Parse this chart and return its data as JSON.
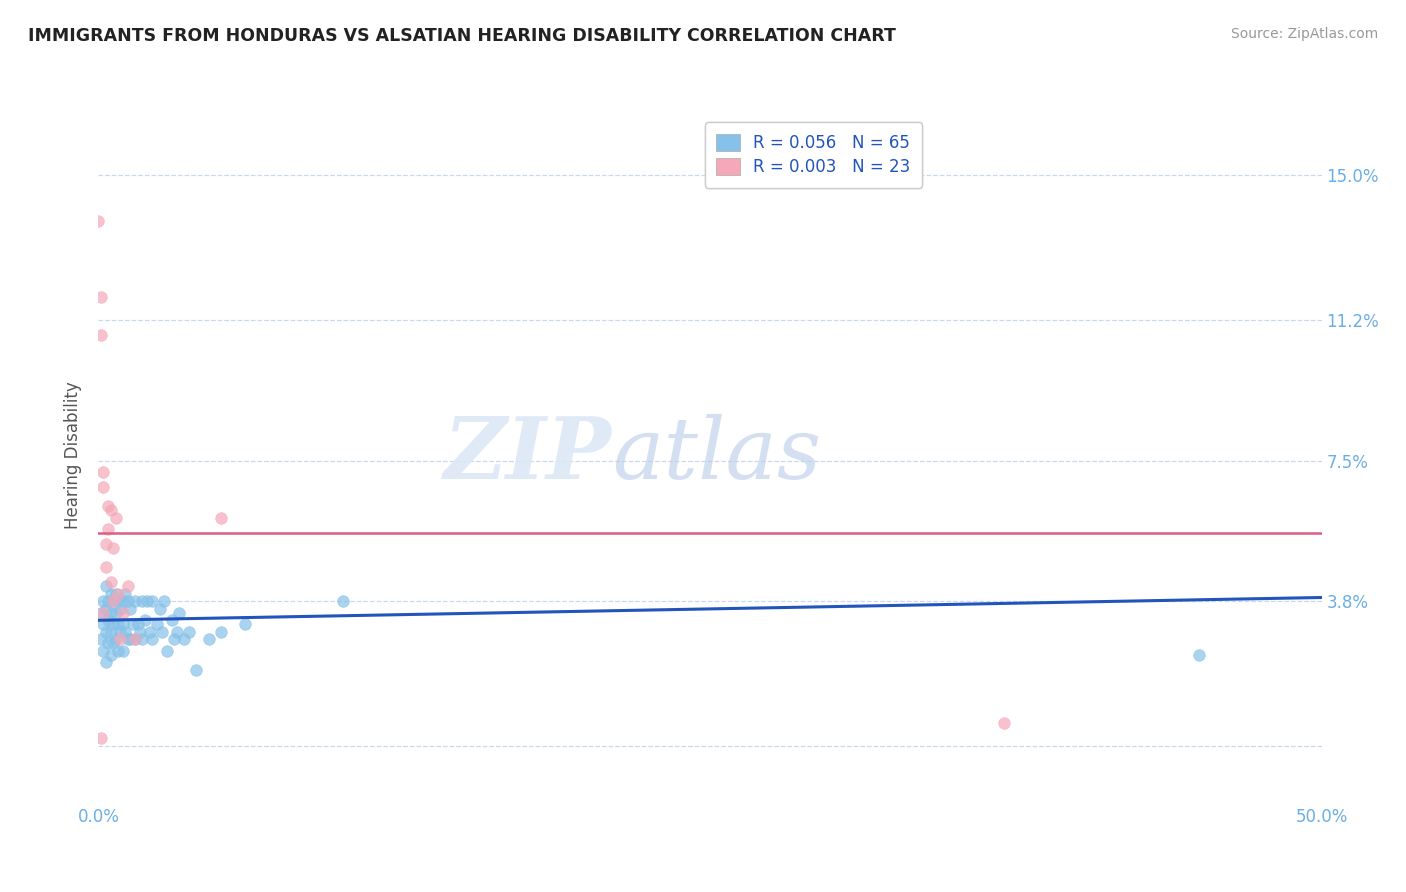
{
  "title": "IMMIGRANTS FROM HONDURAS VS ALSATIAN HEARING DISABILITY CORRELATION CHART",
  "source": "Source: ZipAtlas.com",
  "ylabel": "Hearing Disability",
  "yticks": [
    0.0,
    0.038,
    0.075,
    0.112,
    0.15
  ],
  "ytick_labels": [
    "",
    "3.8%",
    "7.5%",
    "11.2%",
    "15.0%"
  ],
  "xlim": [
    0.0,
    0.5
  ],
  "ylim": [
    -0.015,
    0.168
  ],
  "legend_r1": "R = 0.056",
  "legend_n1": "N = 65",
  "legend_r2": "R = 0.003",
  "legend_n2": "N = 23",
  "color_blue": "#85c1e8",
  "color_pink": "#f4a8b8",
  "color_blue_line": "#2255bb",
  "color_pink_line": "#d96080",
  "color_title": "#333333",
  "color_axis_label": "#555555",
  "color_tick_label": "#6aaee6",
  "color_grid": "#c8d8f0",
  "watermark_color": "#dce8f5",
  "bottom_legend_color": "#444444",
  "blue_scatter_x": [
    0.001,
    0.001,
    0.002,
    0.002,
    0.002,
    0.003,
    0.003,
    0.003,
    0.003,
    0.004,
    0.004,
    0.004,
    0.005,
    0.005,
    0.005,
    0.005,
    0.006,
    0.006,
    0.006,
    0.007,
    0.007,
    0.007,
    0.008,
    0.008,
    0.008,
    0.009,
    0.009,
    0.01,
    0.01,
    0.01,
    0.011,
    0.011,
    0.012,
    0.012,
    0.013,
    0.013,
    0.014,
    0.015,
    0.015,
    0.016,
    0.017,
    0.018,
    0.018,
    0.019,
    0.02,
    0.021,
    0.022,
    0.022,
    0.024,
    0.025,
    0.026,
    0.027,
    0.028,
    0.03,
    0.031,
    0.032,
    0.033,
    0.035,
    0.037,
    0.04,
    0.045,
    0.05,
    0.06,
    0.1,
    0.45
  ],
  "blue_scatter_y": [
    0.035,
    0.028,
    0.038,
    0.032,
    0.025,
    0.042,
    0.036,
    0.03,
    0.022,
    0.038,
    0.033,
    0.027,
    0.04,
    0.035,
    0.03,
    0.024,
    0.038,
    0.032,
    0.027,
    0.04,
    0.035,
    0.028,
    0.038,
    0.032,
    0.025,
    0.036,
    0.03,
    0.038,
    0.032,
    0.025,
    0.04,
    0.03,
    0.038,
    0.028,
    0.036,
    0.028,
    0.032,
    0.038,
    0.028,
    0.032,
    0.03,
    0.038,
    0.028,
    0.033,
    0.038,
    0.03,
    0.038,
    0.028,
    0.032,
    0.036,
    0.03,
    0.038,
    0.025,
    0.033,
    0.028,
    0.03,
    0.035,
    0.028,
    0.03,
    0.02,
    0.028,
    0.03,
    0.032,
    0.038,
    0.024
  ],
  "pink_scatter_x": [
    0.0,
    0.001,
    0.001,
    0.001,
    0.002,
    0.002,
    0.002,
    0.003,
    0.003,
    0.004,
    0.004,
    0.005,
    0.005,
    0.006,
    0.006,
    0.007,
    0.008,
    0.009,
    0.01,
    0.012,
    0.015,
    0.05,
    0.37
  ],
  "pink_scatter_y": [
    0.138,
    0.118,
    0.108,
    0.002,
    0.072,
    0.068,
    0.035,
    0.053,
    0.047,
    0.063,
    0.057,
    0.043,
    0.062,
    0.052,
    0.038,
    0.06,
    0.04,
    0.028,
    0.035,
    0.042,
    0.028,
    0.06,
    0.006
  ],
  "blue_line_x": [
    0.0,
    0.5
  ],
  "blue_line_y": [
    0.033,
    0.039
  ],
  "pink_line_x": [
    0.0,
    0.5
  ],
  "pink_line_y": [
    0.056,
    0.056
  ]
}
